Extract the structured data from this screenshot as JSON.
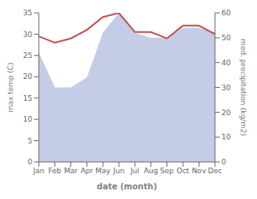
{
  "chart_data": {
    "type": "line",
    "xlabel": "date (month)",
    "ylabel": "max temp (C)",
    "y2label": "med. precipitation (kg/m2)",
    "categories": [
      "Jan",
      "Feb",
      "Mar",
      "Apr",
      "May",
      "Jun",
      "Jul",
      "Aug",
      "Sep",
      "Oct",
      "Nov",
      "Dec"
    ],
    "series": [
      {
        "type": "area",
        "color": "#c5cce8",
        "axis": "y2",
        "values": [
          44,
          30,
          30,
          34,
          52,
          60,
          52,
          50,
          50,
          54,
          54,
          52
        ]
      },
      {
        "type": "line",
        "color": "#c0504d",
        "values": [
          29.5,
          28.0,
          29.0,
          31.0,
          34.0,
          35.0,
          30.5,
          30.5,
          29.0,
          32.0,
          32.0,
          30.0
        ]
      }
    ],
    "ylim": [
      0,
      35
    ],
    "yticks": [
      0,
      5,
      10,
      15,
      20,
      25,
      30,
      35
    ],
    "y2lim": [
      0,
      60
    ],
    "y2ticks": [
      0,
      10,
      20,
      30,
      40,
      50,
      60
    ],
    "grid": false
  }
}
